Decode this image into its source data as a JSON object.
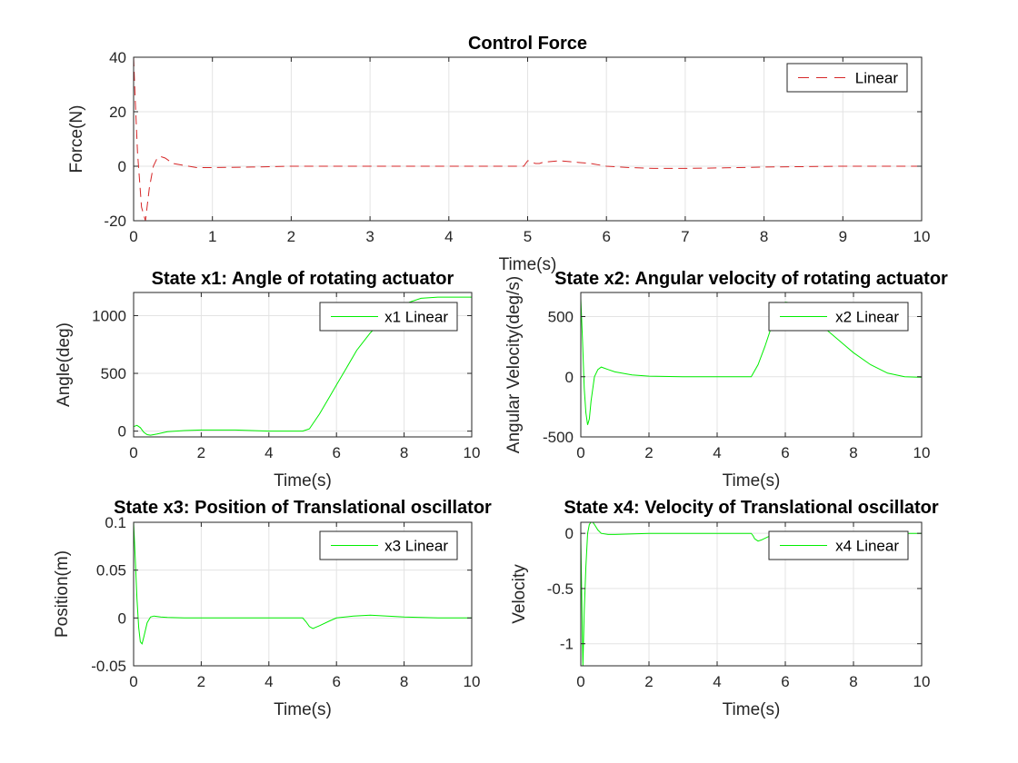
{
  "chart_data": [
    {
      "type": "line",
      "title": "Control Force",
      "xlabel": "Time(s)",
      "ylabel": "Force(N)",
      "xlim": [
        0,
        10
      ],
      "ylim": [
        -20,
        40
      ],
      "xticks": [
        0,
        1,
        2,
        3,
        4,
        5,
        6,
        7,
        8,
        9,
        10
      ],
      "yticks": [
        -20,
        0,
        20,
        40
      ],
      "grid": true,
      "legend_position": "top-right",
      "series": [
        {
          "name": "Linear",
          "color": "#d62728",
          "dashed": true,
          "x": [
            0,
            0.02,
            0.05,
            0.1,
            0.15,
            0.2,
            0.25,
            0.3,
            0.35,
            0.4,
            0.5,
            0.6,
            0.7,
            0.8,
            1.0,
            1.5,
            2,
            3,
            4,
            4.95,
            5.0,
            5.02,
            5.05,
            5.1,
            5.15,
            5.2,
            5.4,
            5.6,
            5.8,
            6.0,
            6.3,
            6.6,
            7,
            7.5,
            8,
            9,
            10
          ],
          "y": [
            40,
            25,
            5,
            -15,
            -20,
            -8,
            0,
            3,
            3.5,
            3,
            1,
            0.5,
            0,
            -0.5,
            -0.5,
            -0.3,
            0,
            0,
            0,
            0,
            2,
            2,
            1.5,
            1,
            1,
            1.5,
            2,
            1.5,
            1,
            0,
            -0.5,
            -0.8,
            -0.8,
            -0.6,
            -0.3,
            0,
            0
          ]
        }
      ]
    },
    {
      "type": "line",
      "title": "State x1: Angle of rotating actuator",
      "xlabel": "Time(s)",
      "ylabel": "Angle(deg)",
      "xlim": [
        0,
        10
      ],
      "ylim": [
        -50,
        1200
      ],
      "xticks": [
        0,
        2,
        4,
        6,
        8,
        10
      ],
      "yticks": [
        0,
        500,
        1000
      ],
      "grid": true,
      "legend_position": "top-right",
      "series": [
        {
          "name": "x1 Linear",
          "color": "#00ee00",
          "x": [
            0,
            0.1,
            0.2,
            0.3,
            0.4,
            0.5,
            0.7,
            1.0,
            1.5,
            2,
            3,
            4,
            5.0,
            5.2,
            5.5,
            5.8,
            6.0,
            6.3,
            6.6,
            7.0,
            7.5,
            8.0,
            8.5,
            9.0,
            9.5,
            10
          ],
          "y": [
            40,
            50,
            30,
            -10,
            -30,
            -35,
            -25,
            -5,
            5,
            10,
            10,
            0,
            0,
            20,
            150,
            300,
            400,
            550,
            700,
            850,
            1000,
            1100,
            1150,
            1160,
            1160,
            1160
          ]
        }
      ]
    },
    {
      "type": "line",
      "title": "State x2: Angular velocity of rotating actuator",
      "xlabel": "Time(s)",
      "ylabel": "Angular Velocity(deg/s)",
      "xlim": [
        0,
        10
      ],
      "ylim": [
        -500,
        700
      ],
      "xticks": [
        0,
        2,
        4,
        6,
        8,
        10
      ],
      "yticks": [
        -500,
        0,
        500
      ],
      "grid": true,
      "legend_position": "top-right",
      "series": [
        {
          "name": "x2 Linear",
          "color": "#00ee00",
          "x": [
            0,
            0.05,
            0.1,
            0.15,
            0.2,
            0.25,
            0.3,
            0.4,
            0.5,
            0.6,
            0.8,
            1.0,
            1.5,
            2,
            3,
            4,
            4.9,
            5.0,
            5.2,
            5.4,
            5.6,
            5.8,
            6.0,
            6.3,
            6.6,
            7.0,
            7.5,
            8.0,
            8.5,
            9.0,
            9.5,
            10
          ],
          "y": [
            650,
            300,
            -100,
            -300,
            -400,
            -350,
            -200,
            0,
            60,
            80,
            60,
            40,
            15,
            5,
            0,
            0,
            0,
            0,
            100,
            250,
            420,
            560,
            620,
            610,
            540,
            440,
            320,
            200,
            100,
            30,
            0,
            -5
          ]
        }
      ]
    },
    {
      "type": "line",
      "title": "State x3: Position of Translational oscillator",
      "xlabel": "Time(s)",
      "ylabel": "Position(m)",
      "xlim": [
        0,
        10
      ],
      "ylim": [
        -0.05,
        0.1
      ],
      "xticks": [
        0,
        2,
        4,
        6,
        8,
        10
      ],
      "yticks": [
        -0.05,
        0,
        0.05,
        0.1
      ],
      "ytick_labels": [
        "-0.05",
        "0",
        "0.05",
        "0.1"
      ],
      "grid": true,
      "legend_position": "top-right",
      "series": [
        {
          "name": "x3 Linear",
          "color": "#00ee00",
          "x": [
            0,
            0.05,
            0.1,
            0.15,
            0.2,
            0.25,
            0.3,
            0.4,
            0.5,
            0.6,
            0.8,
            1.0,
            1.5,
            2,
            3,
            4,
            5.0,
            5.1,
            5.2,
            5.3,
            5.5,
            5.8,
            6.0,
            6.5,
            7.0,
            7.5,
            8.0,
            9.0,
            10
          ],
          "y": [
            0.1,
            0.06,
            0.02,
            -0.01,
            -0.025,
            -0.027,
            -0.02,
            -0.005,
            0.001,
            0.002,
            0.001,
            0.0005,
            0,
            0,
            0,
            0,
            0,
            -0.004,
            -0.009,
            -0.011,
            -0.008,
            -0.003,
            0,
            0.002,
            0.003,
            0.002,
            0.001,
            0,
            0
          ]
        }
      ]
    },
    {
      "type": "line",
      "title": "State x4: Velocity of Translational oscillator",
      "xlabel": "Time(s)",
      "ylabel": "Velocity",
      "xlim": [
        0,
        10
      ],
      "ylim": [
        -1.2,
        0.1
      ],
      "xticks": [
        0,
        2,
        4,
        6,
        8,
        10
      ],
      "yticks": [
        -1,
        -0.5,
        0
      ],
      "ytick_labels": [
        "-1",
        "-0.5",
        "0"
      ],
      "grid": true,
      "legend_position": "top-right",
      "series": [
        {
          "name": "x4 Linear",
          "color": "#00ee00",
          "x": [
            0,
            0.03,
            0.06,
            0.1,
            0.15,
            0.2,
            0.25,
            0.3,
            0.35,
            0.4,
            0.5,
            0.6,
            0.8,
            1.0,
            2,
            3,
            4,
            5.0,
            5.05,
            5.1,
            5.2,
            5.3,
            5.5,
            5.8,
            6.0,
            7,
            8,
            9,
            10
          ],
          "y": [
            -0.05,
            -0.6,
            -1.2,
            -0.7,
            -0.3,
            0,
            0.08,
            0.1,
            0.1,
            0.08,
            0.03,
            0,
            -0.01,
            -0.01,
            0,
            0,
            0,
            0,
            -0.02,
            -0.05,
            -0.07,
            -0.06,
            -0.03,
            -0.01,
            0,
            0,
            0,
            0,
            0
          ]
        }
      ]
    }
  ]
}
